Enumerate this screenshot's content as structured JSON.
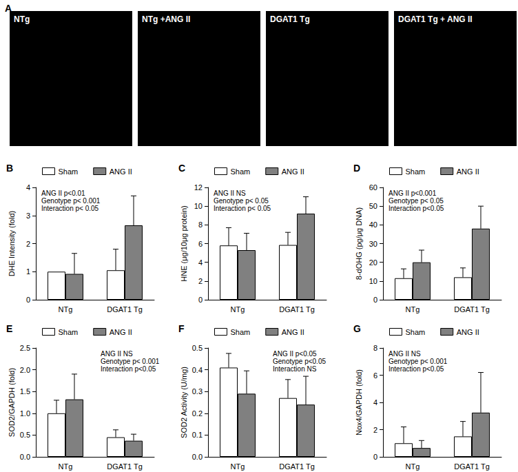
{
  "panel_a": {
    "title": "A",
    "images": [
      "NTg",
      "NTg +ANG II",
      "DGAT1 Tg",
      "DGAT1 Tg + ANG II"
    ]
  },
  "chart_data": [
    {
      "type": "bar",
      "title": "B",
      "y_label": "DHE Intensity (fold)",
      "categories": [
        "NTg",
        "DGAT1 Tg"
      ],
      "series": [
        {
          "name": "Sham",
          "color": "#ffffff",
          "values": [
            1.0,
            1.05
          ],
          "errors": [
            null,
            0.75
          ]
        },
        {
          "name": "ANG II",
          "color": "#808080",
          "values": [
            0.92,
            2.65
          ],
          "errors": [
            0.73,
            1.05
          ]
        }
      ],
      "ylim": [
        0,
        4
      ],
      "yticks": [
        0,
        1,
        2,
        3,
        4
      ],
      "grid": false,
      "legend": "top",
      "annotations": [
        "ANG II p<0.01",
        "Genotype p< 0.001",
        "Interaction p< 0.05"
      ]
    },
    {
      "type": "bar",
      "title": "C",
      "y_label": "HNE (μg/10μg protein)",
      "categories": [
        "NTg",
        "DGAT1 Tg"
      ],
      "series": [
        {
          "name": "Sham",
          "color": "#ffffff",
          "values": [
            5.8,
            5.85
          ],
          "errors": [
            1.9,
            1.35
          ]
        },
        {
          "name": "ANG II",
          "color": "#808080",
          "values": [
            5.3,
            9.2
          ],
          "errors": [
            1.8,
            1.8
          ]
        }
      ],
      "ylim": [
        0,
        12
      ],
      "yticks": [
        0,
        2,
        4,
        6,
        8,
        10,
        12
      ],
      "grid": false,
      "legend": "top",
      "annotations": [
        "ANG II NS",
        "Genotype p< 0.05",
        "Interaction p< 0.05"
      ]
    },
    {
      "type": "bar",
      "title": "D",
      "y_label": "8-dOHG (pg/μg DNA)",
      "categories": [
        "NTg",
        "DGAT1 Tg"
      ],
      "series": [
        {
          "name": "Sham",
          "color": "#ffffff",
          "values": [
            11.5,
            12
          ],
          "errors": [
            5,
            5
          ]
        },
        {
          "name": "ANG II",
          "color": "#808080",
          "values": [
            20,
            38
          ],
          "errors": [
            6.5,
            12
          ]
        }
      ],
      "ylim": [
        0,
        60
      ],
      "yticks": [
        0,
        10,
        20,
        30,
        40,
        50,
        60
      ],
      "grid": false,
      "legend": "top",
      "annotations": [
        "ANG II p<0.001",
        "Genotype p< 0.05",
        "Interaction p<0.05"
      ]
    },
    {
      "type": "bar",
      "title": "E",
      "y_label": "SOD2/GAPDH (fold)",
      "categories": [
        "NTg",
        "DGAT1 Tg"
      ],
      "series": [
        {
          "name": "Sham",
          "color": "#ffffff",
          "values": [
            1.0,
            0.45
          ],
          "errors": [
            0.3,
            0.17
          ]
        },
        {
          "name": "ANG II",
          "color": "#808080",
          "values": [
            1.32,
            0.37
          ],
          "errors": [
            0.58,
            0.15
          ]
        }
      ],
      "ylim": [
        0,
        2.5
      ],
      "yticks": [
        {
          "value": 0,
          "label": "0.0"
        },
        0.5,
        {
          "value": 1,
          "label": "1.0"
        },
        1.5,
        {
          "value": 2,
          "label": "2.0"
        },
        2.5
      ],
      "grid": false,
      "legend": "top",
      "annotations": [
        "ANG II NS",
        "Genotype p< 0.001",
        "Interaction p<0.05"
      ]
    },
    {
      "type": "bar",
      "title": "F",
      "y_label": "SOD2 Activity (U/mg)",
      "categories": [
        "NTg",
        "DGAT1 Tg"
      ],
      "series": [
        {
          "name": "Sham",
          "color": "#ffffff",
          "values": [
            0.41,
            0.27
          ],
          "errors": [
            0.065,
            0.085
          ]
        },
        {
          "name": "ANG II",
          "color": "#808080",
          "values": [
            0.29,
            0.24
          ],
          "errors": [
            0.105,
            0.13
          ]
        }
      ],
      "ylim": [
        0,
        0.5
      ],
      "yticks": [
        {
          "value": 0,
          "label": "0.0"
        },
        0.1,
        0.2,
        0.3,
        0.4,
        0.5
      ],
      "grid": false,
      "legend": "top",
      "annotations": [
        "ANG II p<0.05",
        "Genotype p<0.05",
        "Interaction NS"
      ]
    },
    {
      "type": "bar",
      "title": "G",
      "y_label": "Nox4/GAPDH (fold)",
      "categories": [
        "NTg",
        "DGAT1 Tg"
      ],
      "series": [
        {
          "name": "Sham",
          "color": "#ffffff",
          "values": [
            1.0,
            1.5
          ],
          "errors": [
            1.2,
            1.1
          ]
        },
        {
          "name": "ANG II",
          "color": "#808080",
          "values": [
            0.65,
            3.25
          ],
          "errors": [
            0.55,
            2.95
          ]
        }
      ],
      "ylim": [
        0,
        8
      ],
      "yticks": [
        0,
        2,
        4,
        6,
        8
      ],
      "grid": false,
      "legend": "top",
      "annotations": [
        "ANG II NS",
        "Genotype p< 0.001",
        "Interaction p<0.05"
      ]
    }
  ]
}
